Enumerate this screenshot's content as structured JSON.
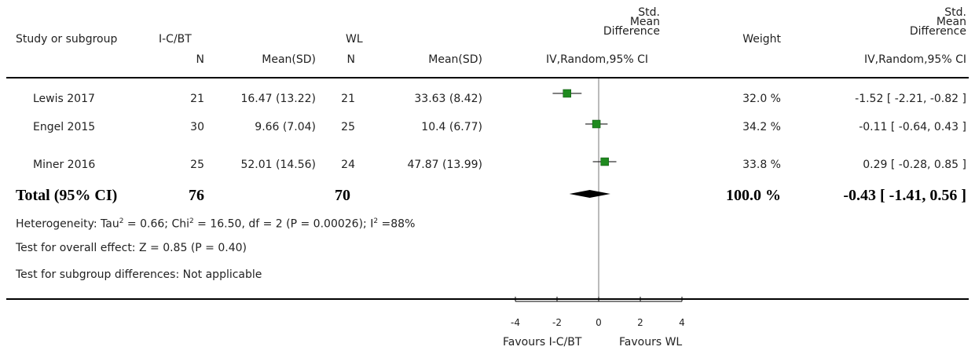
{
  "headers": {
    "study": "Study or subgroup",
    "group1": "I-C/BT",
    "group2": "WL",
    "smd_col": [
      "Std.",
      "Mean",
      "Difference"
    ],
    "smd_col_sub": "IV,Random,95% CI",
    "weight": "Weight",
    "smd2_col": [
      "Std.",
      "Mean",
      "Difference"
    ],
    "smd2_col_sub": "IV,Random,95% CI",
    "n1": "N",
    "mean1": "Mean(SD)",
    "n2": "N",
    "mean2": "Mean(SD)"
  },
  "studies": [
    {
      "name": "Lewis 2017",
      "n1": "21",
      "mean1": "16.47 (13.22)",
      "n2": "21",
      "mean2": "33.63 (8.42)",
      "weight": "32.0 %",
      "ci_text": "-1.52 [ -2.21, -0.82 ]",
      "smd": -1.52,
      "lo": -2.21,
      "hi": -0.82
    },
    {
      "name": "Engel 2015",
      "n1": "30",
      "mean1": "9.66 (7.04)",
      "n2": "25",
      "mean2": "10.4 (6.77)",
      "weight": "34.2 %",
      "ci_text": "-0.11 [ -0.64, 0.43 ]",
      "smd": -0.11,
      "lo": -0.64,
      "hi": 0.43
    },
    {
      "name": "Miner 2016",
      "n1": "25",
      "mean1": "52.01 (14.56)",
      "n2": "24",
      "mean2": "47.87 (13.99)",
      "weight": "33.8 %",
      "ci_text": "0.29 [ -0.28, 0.85 ]",
      "smd": 0.29,
      "lo": -0.28,
      "hi": 0.85
    }
  ],
  "total": {
    "label": "Total (95% CI)",
    "n1": "76",
    "n2": "70",
    "weight": "100.0 %",
    "ci_text": "-0.43 [ -1.41, 0.56 ]",
    "smd": -0.43,
    "lo": -1.41,
    "hi": 0.56
  },
  "notes": {
    "heterogeneity_prefix": "Heterogeneity: Tau",
    "heterogeneity_mid": " = 0.66; Chi",
    "heterogeneity_rest": " = 16.50, df = 2 (P = 0.00026); I",
    "heterogeneity_end": " =88%",
    "sup": "2",
    "overall": "Test for overall effect: Z = 0.85 (P = 0.40)",
    "subgroup": "Test for subgroup differences: Not applicable"
  },
  "axis": {
    "favours_left": "Favours I-C/BT",
    "favours_right": "Favours WL"
  },
  "chart_data": {
    "type": "scatter",
    "title": "",
    "xlabel": "",
    "xlim": [
      -4,
      4
    ],
    "ticks": [
      "-4",
      "-2",
      "0",
      "2",
      "4"
    ],
    "tick_values": [
      -4,
      -2,
      0,
      2,
      4
    ],
    "series": [
      {
        "categories": [
          "Lewis 2017",
          "Engel 2015",
          "Miner 2016"
        ],
        "values": [
          -1.52,
          -0.11,
          0.29
        ],
        "ci_low": [
          -2.21,
          -0.64,
          -0.28
        ],
        "ci_high": [
          -0.82,
          0.43,
          0.85
        ]
      }
    ],
    "pooled": {
      "value": -0.43,
      "ci_low": -1.41,
      "ci_high": 0.56
    },
    "marker_color": "#1f8a1f"
  }
}
